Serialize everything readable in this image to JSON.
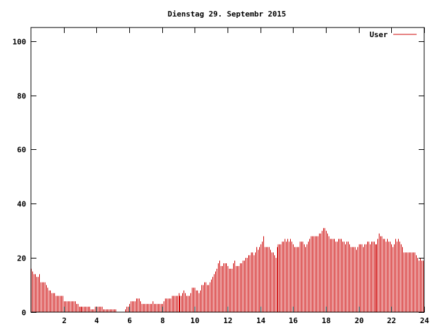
{
  "chart_data": {
    "type": "bar",
    "title": "Dienstag 29. Septembr 2015",
    "xlabel": "",
    "ylabel": "",
    "xlim": [
      0,
      24
    ],
    "ylim": [
      0,
      105
    ],
    "xticks": [
      2,
      4,
      6,
      8,
      10,
      12,
      14,
      16,
      18,
      20,
      22,
      24
    ],
    "yticks": [
      0,
      20,
      40,
      60,
      80,
      100
    ],
    "legend_position": "top-right",
    "grid": false,
    "colors": {
      "series": "#cc0000",
      "axis": "#000000",
      "background": "#ffffff"
    },
    "bins_per_hour": 12,
    "series": [
      {
        "name": "User",
        "values": [
          16,
          15,
          14,
          14,
          13,
          13,
          14,
          11,
          11,
          11,
          11,
          10,
          9,
          8,
          8,
          7,
          7,
          7,
          6,
          6,
          6,
          6,
          6,
          6,
          4,
          4,
          4,
          4,
          4,
          4,
          4,
          4,
          4,
          3,
          3,
          2,
          2,
          2,
          2,
          2,
          2,
          2,
          2,
          2,
          1,
          1,
          1,
          2,
          2,
          2,
          2,
          2,
          2,
          1,
          1,
          1,
          1,
          1,
          1,
          1,
          1,
          1,
          1,
          0,
          0,
          0,
          0,
          0,
          0,
          1,
          2,
          2,
          3,
          4,
          4,
          4,
          4,
          5,
          5,
          5,
          4,
          3,
          3,
          3,
          3,
          3,
          3,
          3,
          3,
          4,
          3,
          3,
          3,
          3,
          3,
          3,
          3,
          4,
          5,
          5,
          5,
          5,
          5,
          6,
          6,
          6,
          6,
          6,
          7,
          6,
          6,
          7,
          8,
          7,
          6,
          6,
          6,
          7,
          9,
          9,
          9,
          8,
          8,
          7,
          8,
          10,
          10,
          11,
          11,
          10,
          10,
          11,
          12,
          13,
          14,
          15,
          16,
          18,
          19,
          17,
          17,
          18,
          18,
          18,
          17,
          16,
          16,
          16,
          18,
          19,
          17,
          17,
          17,
          18,
          18,
          19,
          19,
          20,
          20,
          21,
          21,
          22,
          22,
          21,
          22,
          24,
          23,
          24,
          25,
          26,
          28,
          24,
          24,
          24,
          24,
          23,
          22,
          22,
          21,
          20,
          24,
          25,
          25,
          25,
          26,
          26,
          27,
          26,
          27,
          26,
          27,
          26,
          25,
          24,
          24,
          24,
          24,
          26,
          26,
          26,
          25,
          24,
          25,
          26,
          27,
          28,
          28,
          28,
          28,
          28,
          28,
          29,
          29,
          30,
          31,
          31,
          30,
          29,
          28,
          27,
          27,
          27,
          27,
          26,
          26,
          27,
          27,
          27,
          26,
          26,
          25,
          26,
          26,
          25,
          24,
          24,
          24,
          24,
          23,
          24,
          25,
          25,
          25,
          24,
          25,
          25,
          26,
          26,
          25,
          26,
          26,
          26,
          25,
          25,
          27,
          29,
          28,
          28,
          27,
          27,
          26,
          27,
          26,
          26,
          25,
          24,
          25,
          27,
          26,
          27,
          26,
          25,
          24,
          22,
          22,
          22,
          22,
          22,
          22,
          22,
          22,
          22,
          21,
          20,
          19,
          20,
          19,
          19
        ]
      }
    ]
  }
}
